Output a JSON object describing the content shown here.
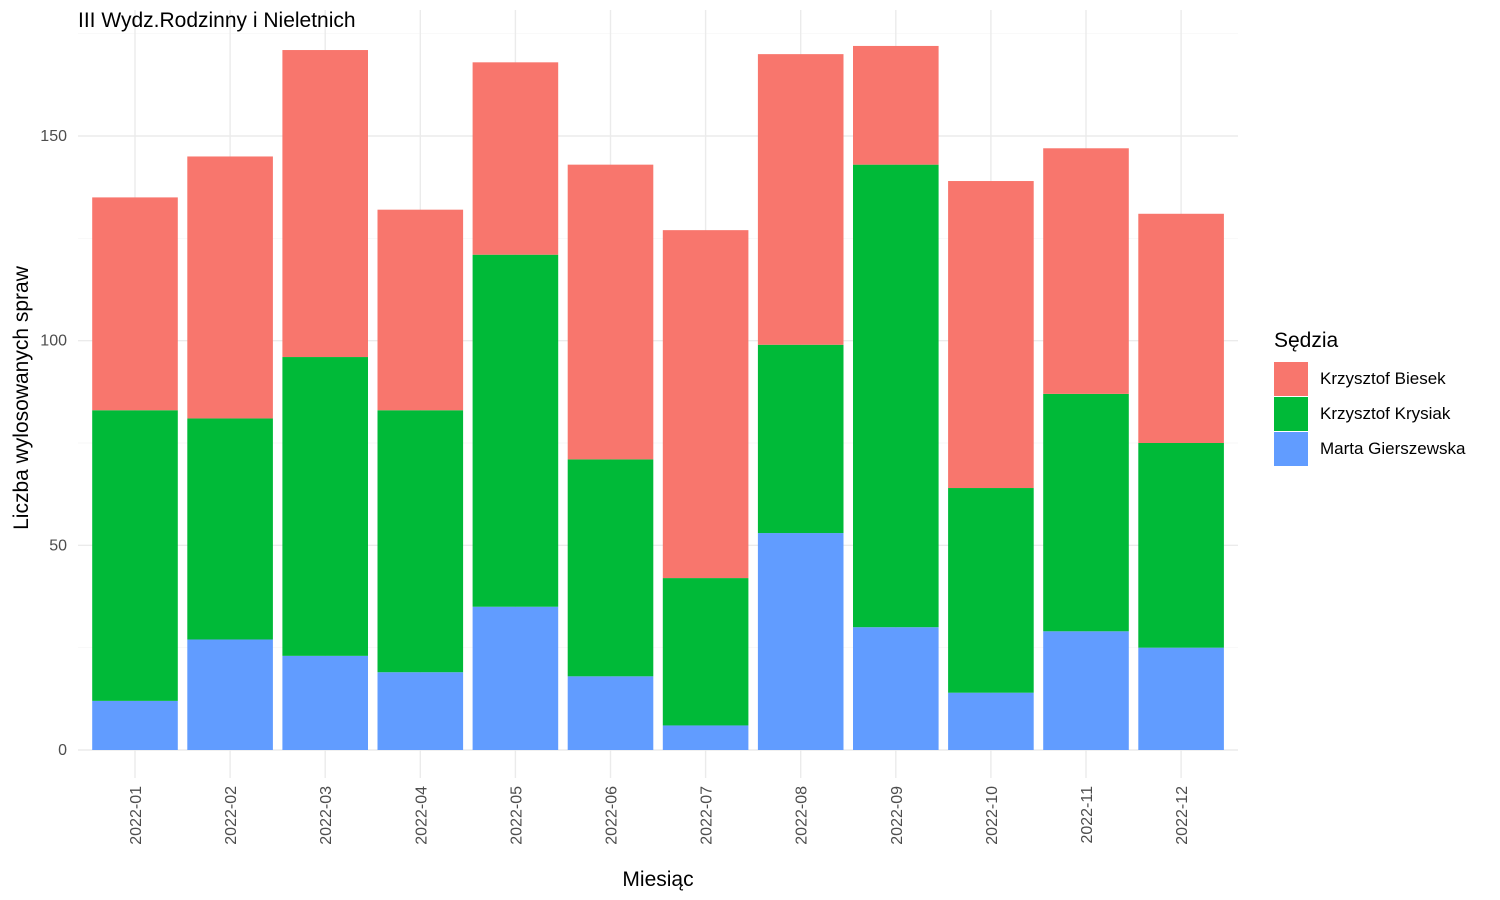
{
  "chart_data": {
    "type": "bar",
    "stacked": true,
    "title": "III Wydz.Rodzinny i Nieletnich",
    "xlabel": "Miesiąc",
    "ylabel": "Liczba wylosowanych spraw",
    "ylim": [
      0,
      175
    ],
    "yticks": [
      0,
      50,
      100,
      150
    ],
    "grid": true,
    "legend_title": "Sędzia",
    "legend_position": "right",
    "categories": [
      "2022-01",
      "2022-02",
      "2022-03",
      "2022-04",
      "2022-05",
      "2022-06",
      "2022-07",
      "2022-08",
      "2022-09",
      "2022-10",
      "2022-11",
      "2022-12"
    ],
    "series": [
      {
        "name": "Marta Gierszewska",
        "color": "#619CFF",
        "values": [
          12,
          27,
          23,
          19,
          35,
          18,
          6,
          53,
          30,
          14,
          29,
          25
        ]
      },
      {
        "name": "Krzysztof Krysiak",
        "color": "#00BA38",
        "values": [
          71,
          54,
          73,
          64,
          86,
          53,
          36,
          46,
          113,
          50,
          58,
          50
        ]
      },
      {
        "name": "Krzysztof Biesek",
        "color": "#F8766D",
        "values": [
          52,
          64,
          75,
          49,
          47,
          72,
          85,
          71,
          29,
          75,
          60,
          56
        ]
      }
    ],
    "legend_order": [
      "Krzysztof Biesek",
      "Krzysztof Krysiak",
      "Marta Gierszewska"
    ]
  }
}
